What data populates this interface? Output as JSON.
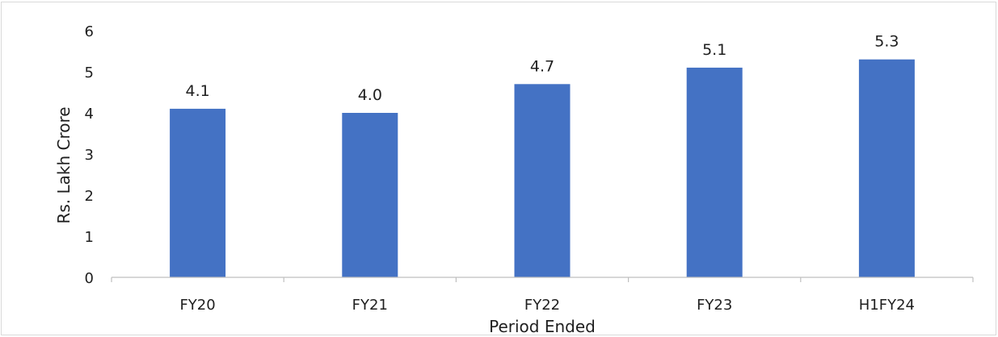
{
  "chart_data": {
    "type": "bar",
    "title": "",
    "xlabel": "Period Ended",
    "ylabel": "Rs. Lakh Crore",
    "categories": [
      "FY20",
      "FY21",
      "FY22",
      "FY23",
      "H1FY24"
    ],
    "series": [
      {
        "values": [
          4.1,
          4.0,
          4.7,
          5.1,
          5.3
        ]
      }
    ],
    "data_labels": [
      "4.1",
      "4.0",
      "4.7",
      "5.1",
      "5.3"
    ],
    "ylim": [
      0,
      6
    ],
    "yticks": [
      "0",
      "1",
      "2",
      "3",
      "4",
      "5",
      "6"
    ],
    "grid": false,
    "legend": "none",
    "bar_color": "#4472c4",
    "axis_color": "#bfbfbf"
  }
}
